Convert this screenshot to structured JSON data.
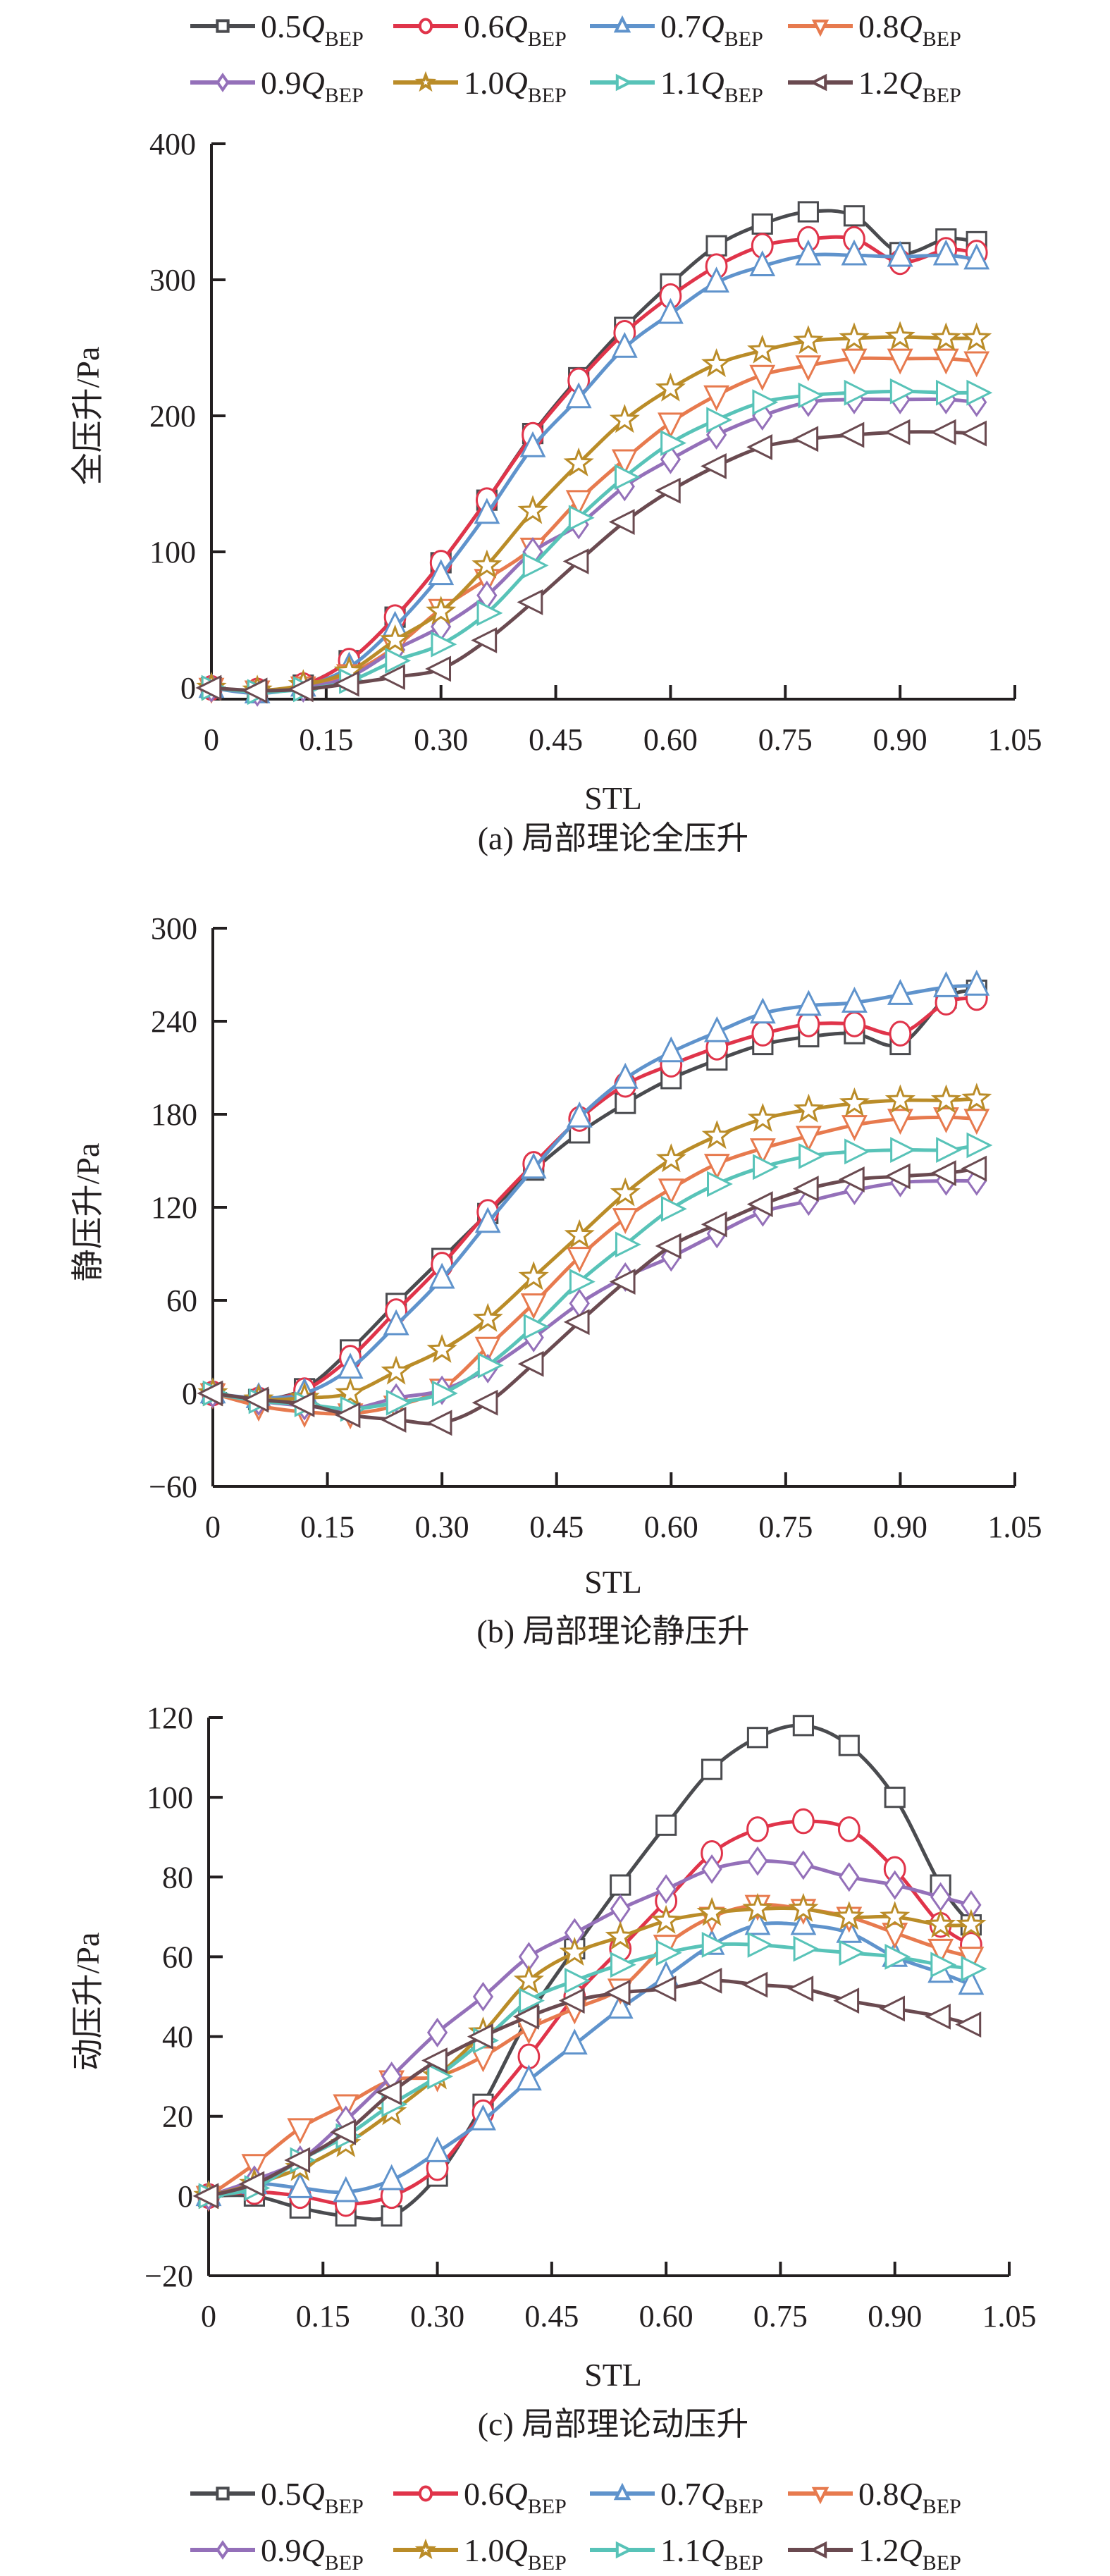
{
  "legend": {
    "items": [
      {
        "prefix": "0.5",
        "q": "Q",
        "sub": "BEP",
        "color": "#4a4b4f",
        "marker": "square"
      },
      {
        "prefix": "0.6",
        "q": "Q",
        "sub": "BEP",
        "color": "#e0344a",
        "marker": "circle"
      },
      {
        "prefix": "0.7",
        "q": "Q",
        "sub": "BEP",
        "color": "#5f93cc",
        "marker": "triangle-up"
      },
      {
        "prefix": "0.8",
        "q": "Q",
        "sub": "BEP",
        "color": "#e77a4e",
        "marker": "triangle-down"
      },
      {
        "prefix": "0.9",
        "q": "Q",
        "sub": "BEP",
        "color": "#9470b9",
        "marker": "diamond"
      },
      {
        "prefix": "1.0",
        "q": "Q",
        "sub": "BEP",
        "color": "#ba8c28",
        "marker": "star"
      },
      {
        "prefix": "1.1",
        "q": "Q",
        "sub": "BEP",
        "color": "#58c3b8",
        "marker": "triangle-right"
      },
      {
        "prefix": "1.2",
        "q": "Q",
        "sub": "BEP",
        "color": "#6a4a50",
        "marker": "triangle-left"
      }
    ]
  },
  "chart_data": [
    {
      "type": "line",
      "caption": "(a) 局部理论全压升",
      "xlabel": "STL",
      "ylabel": "全压升/Pa",
      "xlim": [
        0,
        1.05
      ],
      "ylim": [
        0,
        400
      ],
      "xticks": [
        "0",
        "0.15",
        "0.30",
        "0.45",
        "0.60",
        "0.75",
        "0.90",
        "1.05"
      ],
      "yticks": [
        "0",
        "100",
        "200",
        "300",
        "400"
      ],
      "grid": false,
      "x": [
        0,
        0.06,
        0.12,
        0.18,
        0.24,
        0.3,
        0.36,
        0.42,
        0.48,
        0.54,
        0.6,
        0.66,
        0.72,
        0.78,
        0.84,
        0.9,
        0.96,
        1.0
      ],
      "series": [
        {
          "name": "0.5Q_BEP",
          "values": [
            0,
            -3,
            2,
            20,
            52,
            92,
            138,
            187,
            228,
            265,
            297,
            325,
            341,
            350,
            347,
            320,
            330,
            328
          ]
        },
        {
          "name": "0.6Q_BEP",
          "values": [
            0,
            -2,
            2,
            20,
            52,
            92,
            138,
            186,
            226,
            261,
            288,
            310,
            325,
            330,
            330,
            313,
            322,
            320
          ]
        },
        {
          "name": "0.7Q_BEP",
          "values": [
            0,
            -4,
            1,
            15,
            45,
            83,
            128,
            177,
            213,
            250,
            275,
            298,
            310,
            318,
            318,
            317,
            318,
            315
          ]
        },
        {
          "name": "0.8Q_BEP",
          "values": [
            0,
            -2,
            1,
            10,
            30,
            58,
            80,
            103,
            138,
            168,
            195,
            215,
            230,
            237,
            242,
            242,
            242,
            240
          ]
        },
        {
          "name": "0.9Q_BEP",
          "values": [
            0,
            -3,
            0,
            8,
            28,
            45,
            68,
            100,
            120,
            148,
            168,
            186,
            200,
            210,
            212,
            212,
            212,
            210
          ]
        },
        {
          "name": "1.0Q_BEP",
          "values": [
            0,
            -2,
            2,
            12,
            35,
            56,
            90,
            130,
            165,
            197,
            220,
            238,
            248,
            255,
            257,
            258,
            257,
            257
          ]
        },
        {
          "name": "1.1Q_BEP",
          "values": [
            0,
            -3,
            -1,
            5,
            20,
            32,
            55,
            90,
            125,
            155,
            180,
            197,
            210,
            215,
            217,
            218,
            217,
            217
          ]
        },
        {
          "name": "1.2Q_BEP",
          "values": [
            0,
            -2,
            -1,
            3,
            8,
            14,
            35,
            63,
            93,
            122,
            145,
            163,
            177,
            183,
            186,
            188,
            188,
            187
          ]
        }
      ]
    },
    {
      "type": "line",
      "caption": "(b) 局部理论静压升",
      "xlabel": "STL",
      "ylabel": "静压升/Pa",
      "xlim": [
        0,
        1.05
      ],
      "ylim": [
        -60,
        300
      ],
      "xticks": [
        "0",
        "0.15",
        "0.30",
        "0.45",
        "0.60",
        "0.75",
        "0.90",
        "1.05"
      ],
      "yticks": [
        "−60",
        "0",
        "60",
        "120",
        "180",
        "240",
        "300"
      ],
      "grid": false,
      "x": [
        0,
        0.06,
        0.12,
        0.18,
        0.24,
        0.3,
        0.36,
        0.42,
        0.48,
        0.54,
        0.6,
        0.66,
        0.72,
        0.78,
        0.84,
        0.9,
        0.96,
        1.0
      ],
      "series": [
        {
          "name": "0.5Q_BEP",
          "values": [
            0,
            -4,
            3,
            28,
            58,
            87,
            116,
            144,
            168,
            187,
            203,
            215,
            225,
            230,
            232,
            225,
            255,
            260
          ]
        },
        {
          "name": "0.6Q_BEP",
          "values": [
            0,
            -4,
            2,
            23,
            53,
            83,
            117,
            148,
            177,
            199,
            212,
            223,
            232,
            238,
            238,
            232,
            252,
            255
          ]
        },
        {
          "name": "0.7Q_BEP",
          "values": [
            0,
            -3,
            0,
            16,
            44,
            74,
            110,
            145,
            178,
            203,
            220,
            233,
            245,
            250,
            252,
            257,
            262,
            263
          ]
        },
        {
          "name": "0.8Q_BEP",
          "values": [
            0,
            -8,
            -12,
            -13,
            -8,
            3,
            30,
            58,
            88,
            113,
            132,
            148,
            158,
            166,
            173,
            177,
            178,
            177
          ]
        },
        {
          "name": "0.9Q_BEP",
          "values": [
            0,
            -5,
            -8,
            -10,
            -3,
            2,
            16,
            36,
            58,
            75,
            88,
            103,
            117,
            124,
            131,
            136,
            137,
            137
          ]
        },
        {
          "name": "1.0Q_BEP",
          "values": [
            0,
            -4,
            -3,
            0,
            14,
            28,
            48,
            75,
            102,
            129,
            151,
            166,
            177,
            183,
            187,
            189,
            189,
            190
          ]
        },
        {
          "name": "1.1Q_BEP",
          "values": [
            0,
            -5,
            -7,
            -10,
            -6,
            0,
            18,
            43,
            72,
            96,
            119,
            135,
            146,
            153,
            156,
            157,
            157,
            160
          ]
        },
        {
          "name": "1.2Q_BEP",
          "values": [
            0,
            -4,
            -7,
            -14,
            -17,
            -19,
            -6,
            19,
            46,
            72,
            95,
            109,
            122,
            132,
            138,
            140,
            142,
            145
          ]
        }
      ]
    },
    {
      "type": "line",
      "caption": "(c) 局部理论动压升",
      "xlabel": "STL",
      "ylabel": "动压升/Pa",
      "xlim": [
        0,
        1.05
      ],
      "ylim": [
        -20,
        120
      ],
      "xticks": [
        "0",
        "0.15",
        "0.30",
        "0.45",
        "0.60",
        "0.75",
        "0.90",
        "1.05"
      ],
      "yticks": [
        "−20",
        "0",
        "20",
        "40",
        "60",
        "80",
        "100",
        "120"
      ],
      "grid": false,
      "x": [
        0,
        0.06,
        0.12,
        0.18,
        0.24,
        0.3,
        0.36,
        0.42,
        0.48,
        0.54,
        0.6,
        0.66,
        0.72,
        0.78,
        0.84,
        0.9,
        0.96,
        1.0
      ],
      "series": [
        {
          "name": "0.5Q_BEP",
          "values": [
            0,
            0,
            -3,
            -5,
            -5,
            5,
            23,
            45,
            62,
            78,
            93,
            107,
            115,
            118,
            113,
            100,
            78,
            68
          ]
        },
        {
          "name": "0.6Q_BEP",
          "values": [
            0,
            1,
            0,
            -2,
            0,
            7,
            21,
            35,
            50,
            62,
            74,
            86,
            92,
            94,
            92,
            82,
            68,
            63
          ]
        },
        {
          "name": "0.7Q_BEP",
          "values": [
            0,
            3,
            2,
            1,
            4,
            11,
            19,
            29,
            38,
            47,
            55,
            63,
            68,
            68,
            66,
            60,
            56,
            53
          ]
        },
        {
          "name": "0.8Q_BEP",
          "values": [
            0,
            8,
            17,
            23,
            29,
            30,
            35,
            42,
            47,
            52,
            63,
            70,
            73,
            72,
            70,
            66,
            62,
            60
          ]
        },
        {
          "name": "0.9Q_BEP",
          "values": [
            0,
            4,
            9,
            19,
            30,
            41,
            50,
            60,
            66,
            72,
            77,
            82,
            84,
            83,
            80,
            78,
            75,
            73
          ]
        },
        {
          "name": "1.0Q_BEP",
          "values": [
            0,
            3,
            7,
            13,
            21,
            30,
            41,
            54,
            61,
            65,
            69,
            71,
            72,
            72,
            70,
            70,
            68,
            68
          ]
        },
        {
          "name": "1.1Q_BEP",
          "values": [
            0,
            2,
            9,
            15,
            23,
            30,
            39,
            49,
            54,
            58,
            61,
            63,
            63,
            62,
            61,
            60,
            58,
            57
          ]
        },
        {
          "name": "1.2Q_BEP",
          "values": [
            0,
            3,
            9,
            16,
            26,
            34,
            40,
            45,
            49,
            51,
            52,
            54,
            53,
            52,
            49,
            47,
            45,
            43
          ]
        }
      ]
    }
  ]
}
